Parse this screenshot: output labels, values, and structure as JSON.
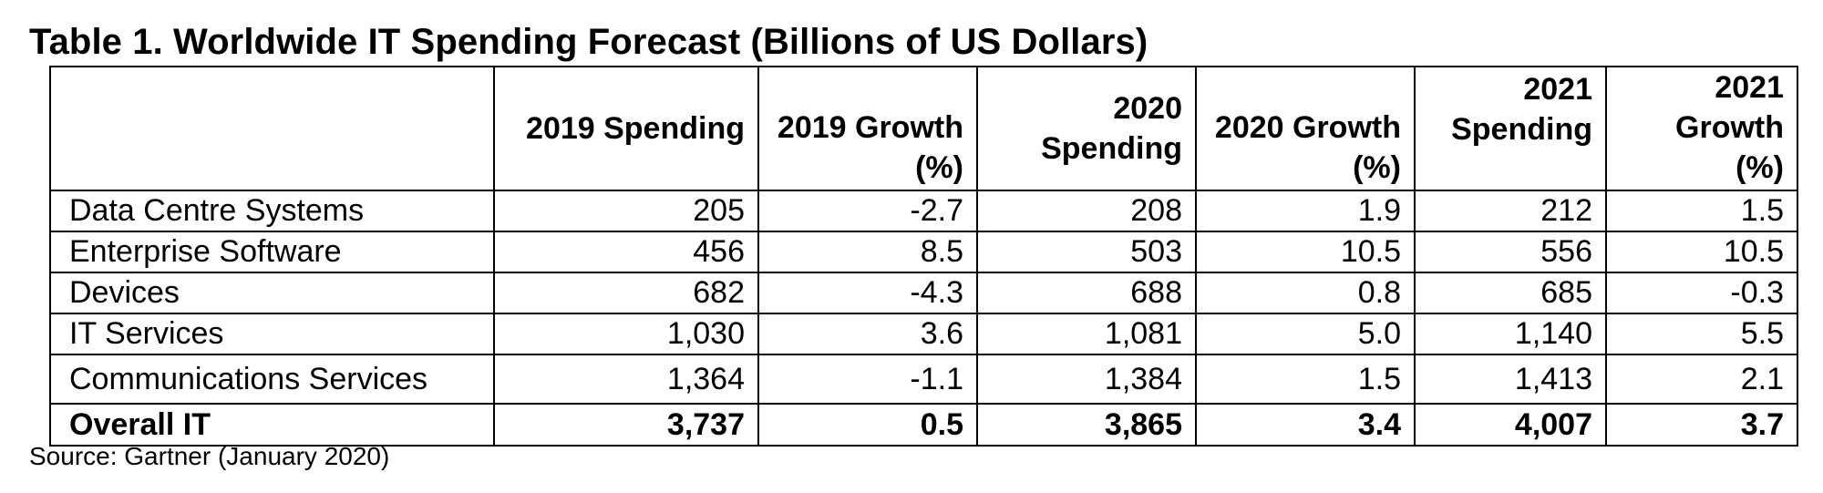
{
  "title": "Table 1. Worldwide IT Spending Forecast (Billions of US Dollars)",
  "table": {
    "headers": [
      "",
      "2019 Spending",
      "2019 Growth (%)",
      "2020 Spending",
      "2020 Growth (%)",
      "2021 Spending",
      "2021 Growth (%)"
    ],
    "rows": [
      [
        "Data Centre Systems",
        "205",
        "-2.7",
        "208",
        "1.9",
        "212",
        "1.5"
      ],
      [
        "Enterprise Software",
        "456",
        "8.5",
        "503",
        "10.5",
        "556",
        "10.5"
      ],
      [
        "Devices",
        "682",
        "-4.3",
        "688",
        "0.8",
        "685",
        "-0.3"
      ],
      [
        "IT Services",
        "1,030",
        "3.6",
        "1,081",
        "5.0",
        "1,140",
        "5.5"
      ],
      [
        "Communications Services",
        "1,364",
        "-1.1",
        "1,384",
        "1.5",
        "1,413",
        "2.1"
      ],
      [
        "Overall IT",
        "3,737",
        "0.5",
        "3,865",
        "3.4",
        "4,007",
        "3.7"
      ]
    ]
  },
  "source": "Source: Gartner (January 2020)"
}
